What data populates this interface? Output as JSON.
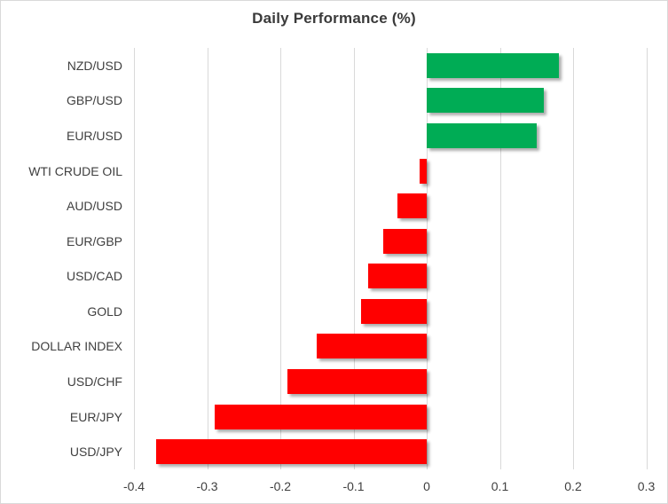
{
  "title": "Daily Performance (%)",
  "chart_data": {
    "type": "bar",
    "orientation": "horizontal",
    "title": "Daily Performance (%)",
    "xlabel": "",
    "ylabel": "",
    "categories": [
      "NZD/USD",
      "GBP/USD",
      "EUR/USD",
      "WTI CRUDE OIL",
      "AUD/USD",
      "EUR/GBP",
      "USD/CAD",
      "GOLD",
      "DOLLAR INDEX",
      "USD/CHF",
      "EUR/JPY",
      "USD/JPY"
    ],
    "values": [
      0.18,
      0.16,
      0.15,
      -0.01,
      -0.04,
      -0.06,
      -0.08,
      -0.09,
      -0.15,
      -0.19,
      -0.29,
      -0.37
    ],
    "xlim": [
      -0.4,
      0.3
    ],
    "xticks": [
      -0.4,
      -0.3,
      -0.2,
      -0.1,
      0,
      0.1,
      0.2,
      0.3
    ],
    "xtick_labels": [
      "-0.4",
      "-0.3",
      "-0.2",
      "-0.1",
      "0",
      "0.1",
      "0.2",
      "0.3"
    ],
    "grid": true,
    "legend": false,
    "positive_color": "#00ac55",
    "negative_color": "#ff0000"
  },
  "colors": {
    "gridline": "#d9d9d9",
    "chart_border": "#d9d9d9",
    "title_text": "#3a3a3a",
    "axis_text": "#3f3f3f",
    "background": "#ffffff"
  }
}
